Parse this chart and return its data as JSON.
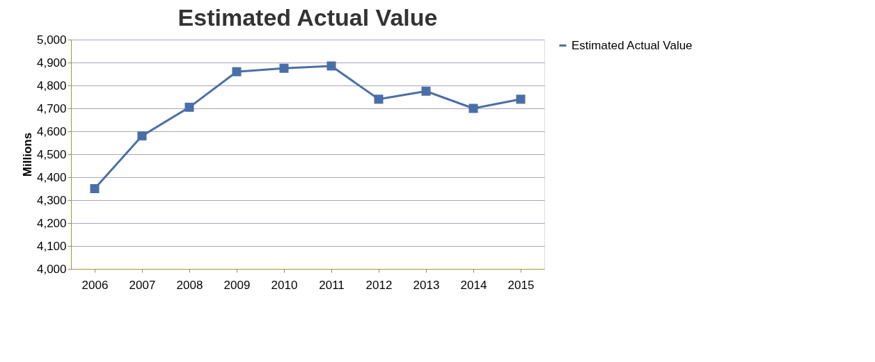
{
  "chart_data": {
    "type": "line",
    "title": "Estimated  Actual Value",
    "ylabel": "Millions",
    "categories": [
      "2006",
      "2007",
      "2008",
      "2009",
      "2010",
      "2011",
      "2012",
      "2013",
      "2014",
      "2015"
    ],
    "series": [
      {
        "name": "Estimated  Actual Value",
        "color": "#4a6fa8",
        "values": [
          4350,
          4580,
          4705,
          4860,
          4875,
          4885,
          4740,
          4775,
          4700,
          4740
        ]
      }
    ],
    "ylim": [
      4000,
      5000
    ],
    "yticks": [
      {
        "value": 4000,
        "label": "4,000"
      },
      {
        "value": 4100,
        "label": "4,100"
      },
      {
        "value": 4200,
        "label": "4,200"
      },
      {
        "value": 4300,
        "label": "4,300"
      },
      {
        "value": 4400,
        "label": "4,400"
      },
      {
        "value": 4500,
        "label": "4,500"
      },
      {
        "value": 4600,
        "label": "4,600"
      },
      {
        "value": 4700,
        "label": "4,700"
      },
      {
        "value": 4800,
        "label": "4,800"
      },
      {
        "value": 4900,
        "label": "4,900"
      },
      {
        "value": 5000,
        "label": "5,000"
      }
    ],
    "grid": "y",
    "legend": "right",
    "marker": "square",
    "line_style": "solid"
  }
}
